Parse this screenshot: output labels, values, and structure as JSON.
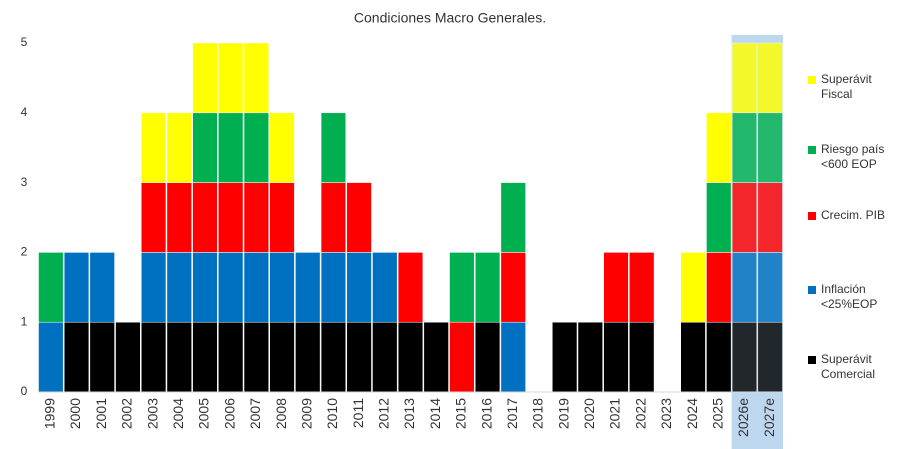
{
  "chart_data": {
    "type": "bar",
    "stacked": true,
    "title": "Condiciones Macro Generales.",
    "categories": [
      "1999",
      "2000",
      "2001",
      "2002",
      "2003",
      "2004",
      "2005",
      "2006",
      "2007",
      "2008",
      "2009",
      "2010",
      "2011",
      "2012",
      "2013",
      "2014",
      "2015",
      "2016",
      "2017",
      "2018",
      "2019",
      "2020",
      "2021",
      "2022",
      "2023",
      "2024",
      "2025",
      "2026e",
      "2027e"
    ],
    "series": [
      {
        "name": "Superávit Comercial",
        "color": "#000000",
        "values": [
          0,
          1,
          1,
          1,
          1,
          1,
          1,
          1,
          1,
          1,
          1,
          1,
          1,
          1,
          1,
          1,
          0,
          1,
          0,
          0,
          1,
          1,
          1,
          1,
          0,
          1,
          1,
          1,
          1
        ]
      },
      {
        "name": "Inflación <25%EOP",
        "color": "#0070c0",
        "values": [
          1,
          1,
          1,
          0,
          1,
          1,
          1,
          1,
          1,
          1,
          1,
          1,
          1,
          1,
          0,
          0,
          0,
          0,
          1,
          0,
          0,
          0,
          0,
          0,
          0,
          0,
          0,
          1,
          1
        ]
      },
      {
        "name": "Crecim. PIB",
        "color": "#ff0000",
        "values": [
          0,
          0,
          0,
          0,
          1,
          1,
          1,
          1,
          1,
          1,
          0,
          1,
          1,
          0,
          1,
          0,
          1,
          0,
          1,
          0,
          0,
          0,
          1,
          1,
          0,
          0,
          1,
          1,
          1
        ]
      },
      {
        "name": "Riesgo país <600 EOP",
        "color": "#00b050",
        "values": [
          1,
          0,
          0,
          0,
          0,
          0,
          1,
          1,
          1,
          0,
          0,
          1,
          0,
          0,
          0,
          0,
          1,
          1,
          1,
          0,
          0,
          0,
          0,
          0,
          0,
          0,
          1,
          1,
          1
        ]
      },
      {
        "name": "Superávit Fiscal",
        "color": "#ffff00",
        "values": [
          0,
          0,
          0,
          0,
          1,
          1,
          1,
          1,
          1,
          1,
          0,
          0,
          0,
          0,
          0,
          0,
          0,
          0,
          0,
          0,
          0,
          0,
          0,
          0,
          0,
          1,
          1,
          1,
          1
        ]
      }
    ],
    "ylim": [
      0,
      5
    ],
    "yticks": [
      0,
      1,
      2,
      3,
      4,
      5
    ],
    "grid": false
  }
}
